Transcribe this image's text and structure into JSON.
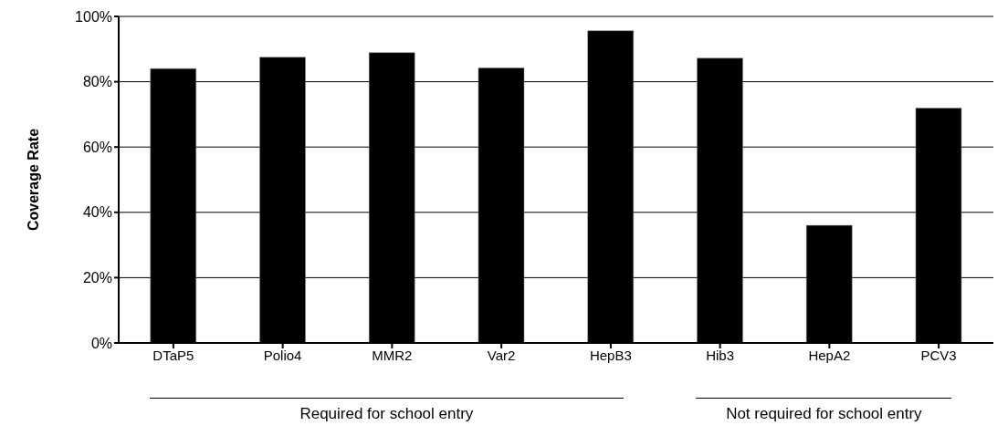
{
  "chart_data": {
    "type": "bar",
    "categories": [
      "DTaP5",
      "Polio4",
      "MMR2",
      "Var2",
      "HepB3",
      "Hib3",
      "HepA2",
      "PCV3"
    ],
    "values": [
      84.0,
      87.5,
      88.9,
      84.2,
      95.6,
      87.2,
      36.0,
      71.9
    ],
    "color": "#000000",
    "ylabel": "Coverage Rate",
    "ylim": [
      0,
      100
    ],
    "yticks": [
      {
        "value": 0,
        "label": "0%"
      },
      {
        "value": 20,
        "label": "20%"
      },
      {
        "value": 40,
        "label": "40%"
      },
      {
        "value": 60,
        "label": "60%"
      },
      {
        "value": 80,
        "label": "80%"
      },
      {
        "value": 100,
        "label": "100%"
      }
    ],
    "grid": "y",
    "annotations": [
      "Required for school entry",
      "Not required for school entry"
    ]
  }
}
